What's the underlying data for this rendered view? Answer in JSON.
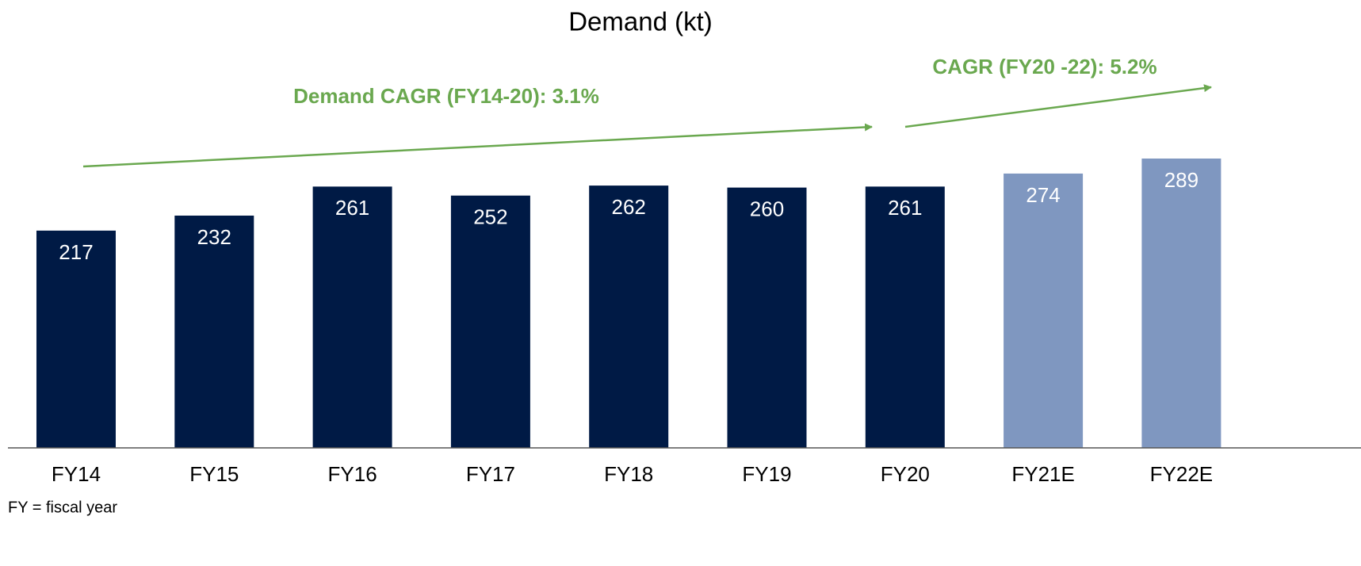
{
  "chart_data": {
    "type": "bar",
    "title": "Demand (kt)",
    "categories": [
      "FY14",
      "FY15",
      "FY16",
      "FY17",
      "FY18",
      "FY19",
      "FY20",
      "FY21E",
      "FY22E"
    ],
    "values": [
      217,
      232,
      261,
      252,
      262,
      260,
      261,
      274,
      289
    ],
    "colors": [
      "#001a45",
      "#001a45",
      "#001a45",
      "#001a45",
      "#001a45",
      "#001a45",
      "#001a45",
      "#7f97c0",
      "#7f97c0"
    ],
    "annotations": [
      "Demand CAGR (FY14-20): 3.1%",
      "CAGR (FY20 -22): 5.2%"
    ],
    "annotation_color": "#6aa84f",
    "footnote": "FY = fiscal year"
  }
}
